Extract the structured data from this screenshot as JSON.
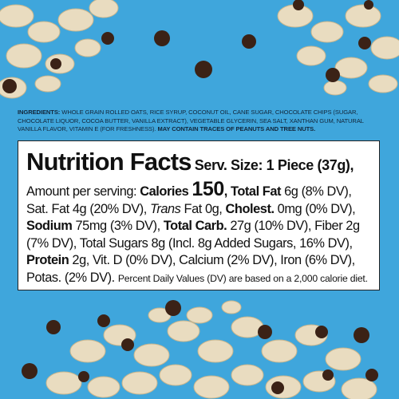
{
  "ingredients": {
    "label": "INGREDIENTS:",
    "text": "WHOLE GRAIN ROLLED OATS, RICE SYRUP, COCONUT OIL, CANE SUGAR, CHOCOLATE CHIPS (SUGAR, CHOCOLATE LIQUOR, COCOA BUTTER, VANILLA EXTRACT), VEGETABLE GLYCERIN, SEA SALT, XANTHAN GUM, NATURAL VANILLA FLAVOR, VITAMIN E (FOR FRESHNESS).",
    "allergen": "MAY CONTAIN TRACES OF PEANUTS AND TREE NUTS."
  },
  "nutrition": {
    "title": "Nutrition Facts",
    "serving": "Serv. Size: 1 Piece (37g),",
    "segments": [
      "Amount per serving: ",
      "Calories ",
      "150",
      ", Total Fat ",
      "6g (8% DV), Sat. Fat 4g (20% DV), ",
      "Trans",
      " Fat 0g, ",
      "Cholest.",
      " 0mg (0% DV), ",
      "Sodium",
      " 75mg (3% DV), ",
      "Total Carb.",
      " 27g (10% DV), Fiber 2g (7% DV), Total Sugars 8g (Incl. 8g Added Sugars, 16% DV), ",
      "Protein",
      " 2g, Vit. D (0% DV), Calcium (2% DV), Iron (6% DV), Potas. (2% DV). ",
      "Percent Daily Values (DV) are based on a 2,000 calorie diet."
    ]
  }
}
